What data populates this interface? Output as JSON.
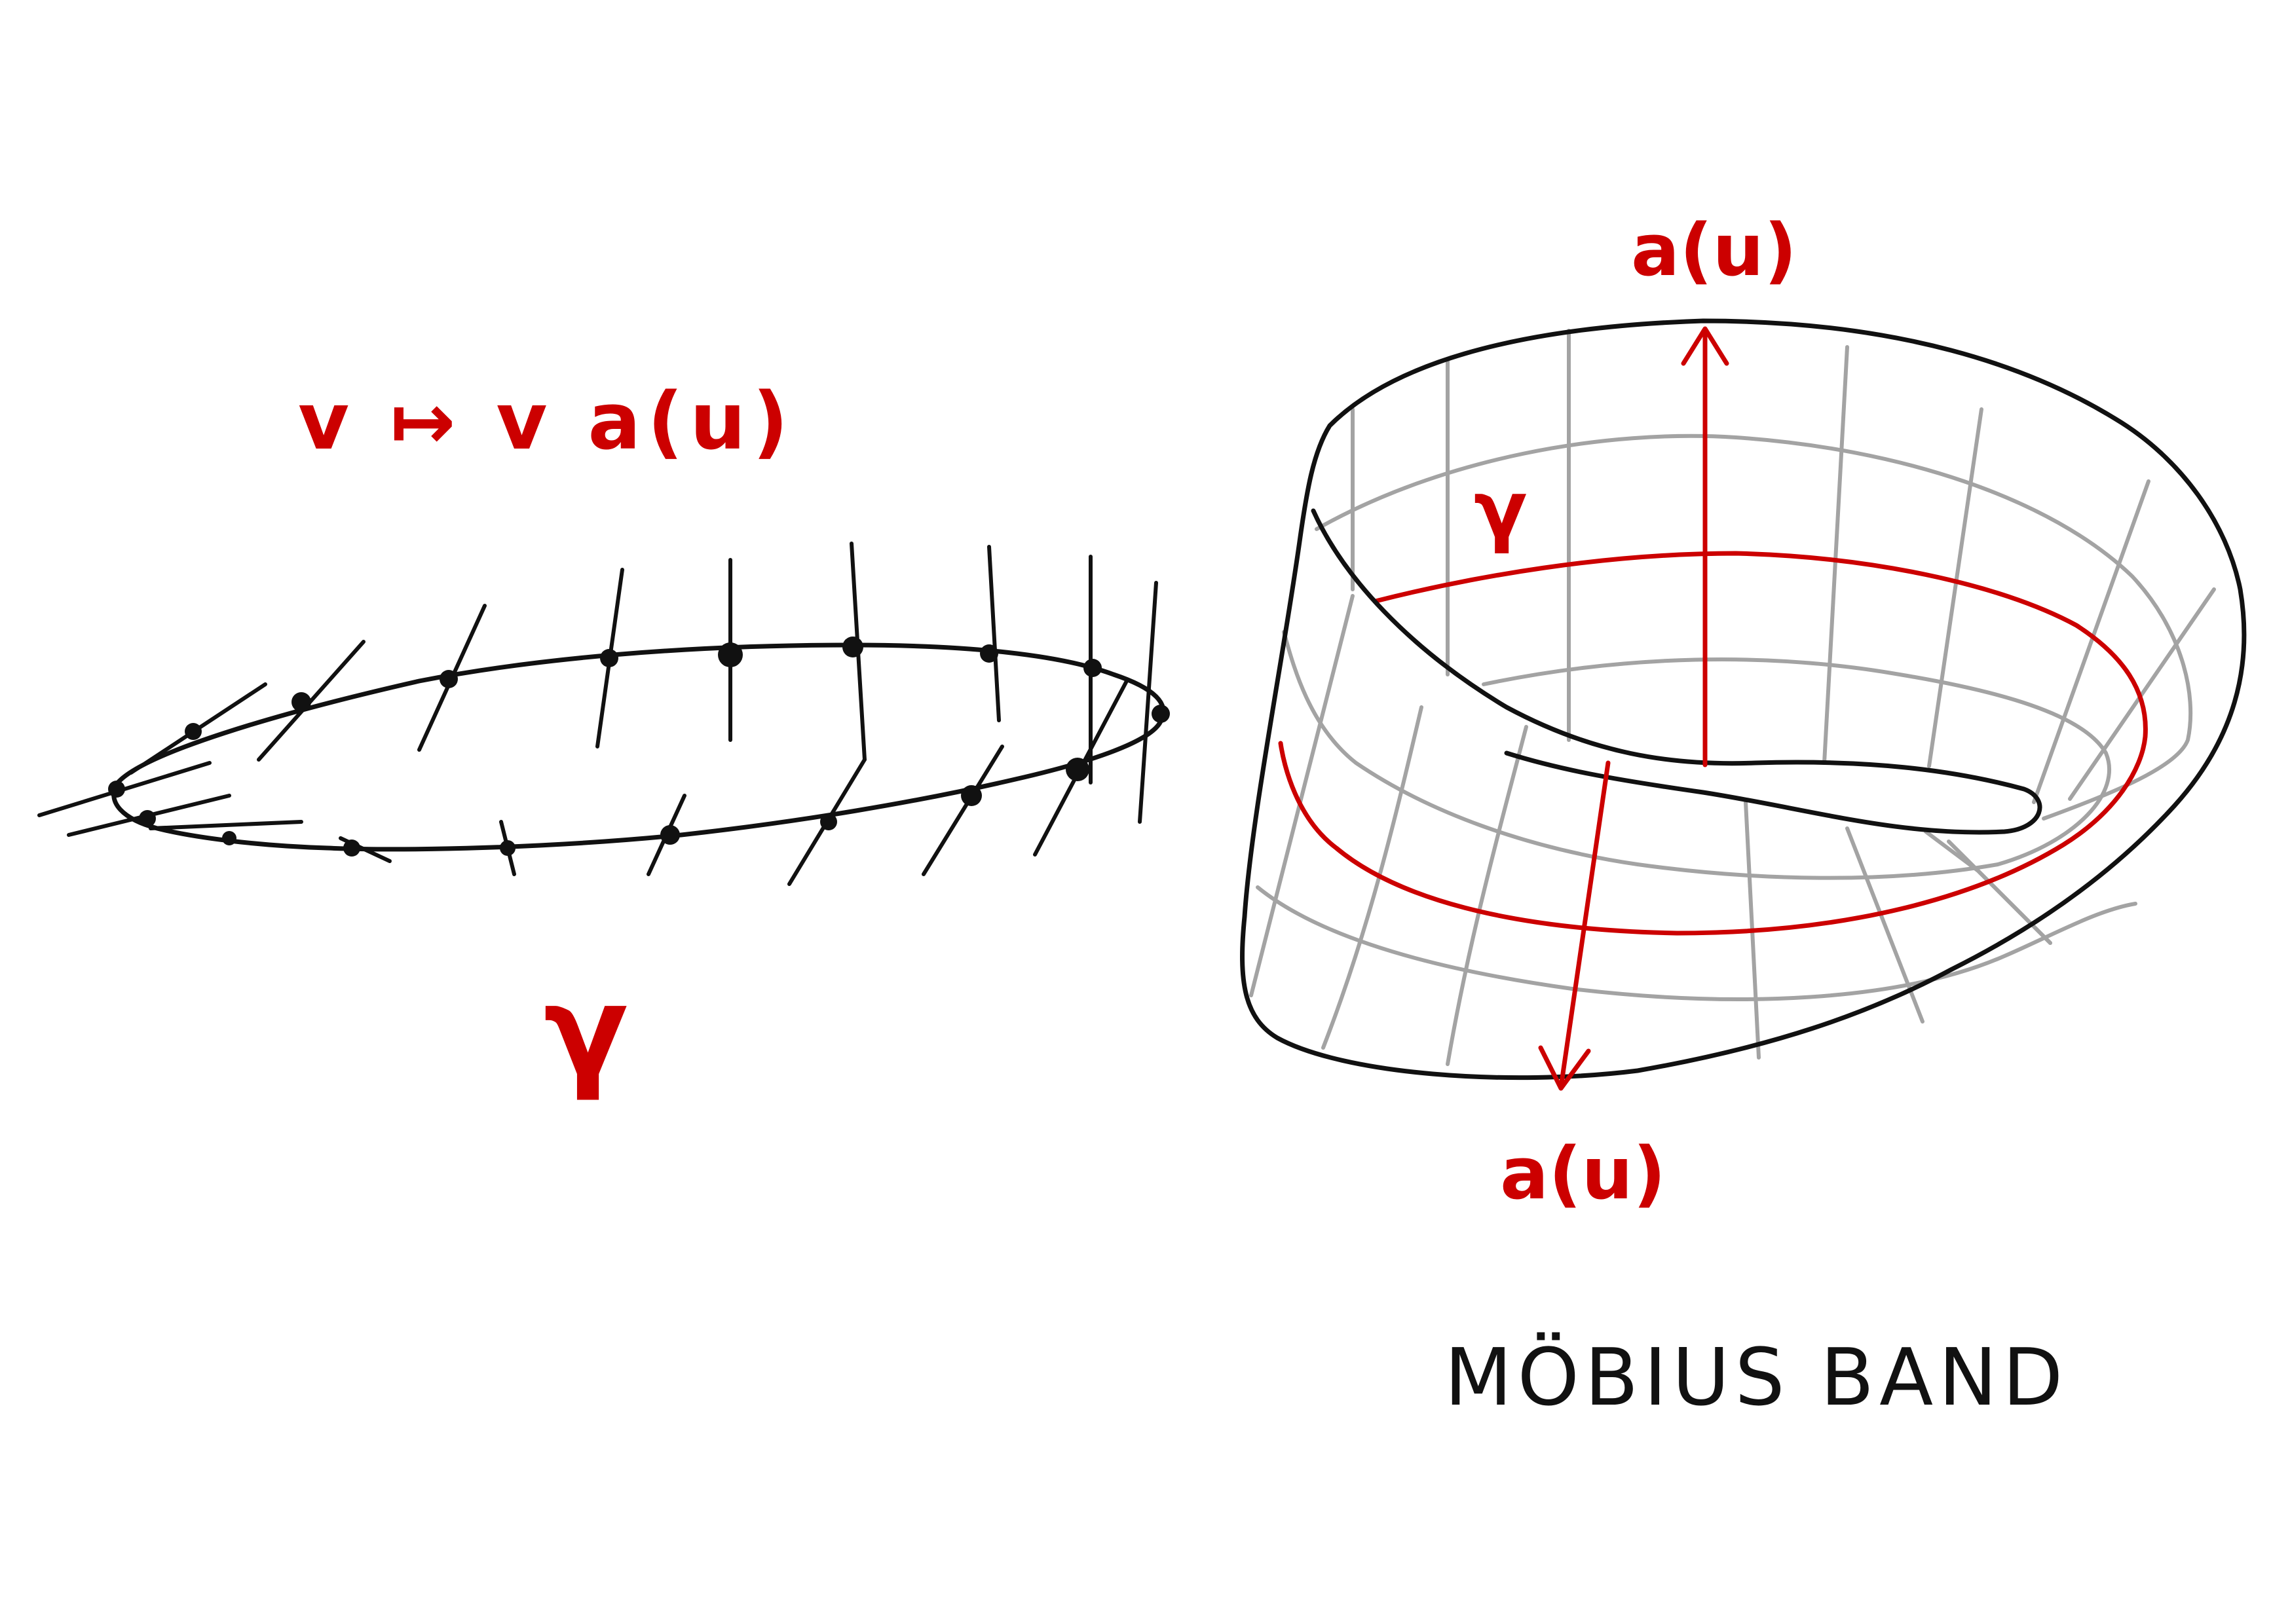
{
  "left_figure": {
    "map_label": "v ↦ v a(u)",
    "curve_label": "γ"
  },
  "right_figure": {
    "curve_label": "γ",
    "top_vector_label": "a(u)",
    "bottom_vector_label": "a(u)",
    "title": "MÖBIUS BAND"
  },
  "colors": {
    "ink": "#111111",
    "annotation": "#cc0000",
    "grid": "#a3a3a3"
  }
}
